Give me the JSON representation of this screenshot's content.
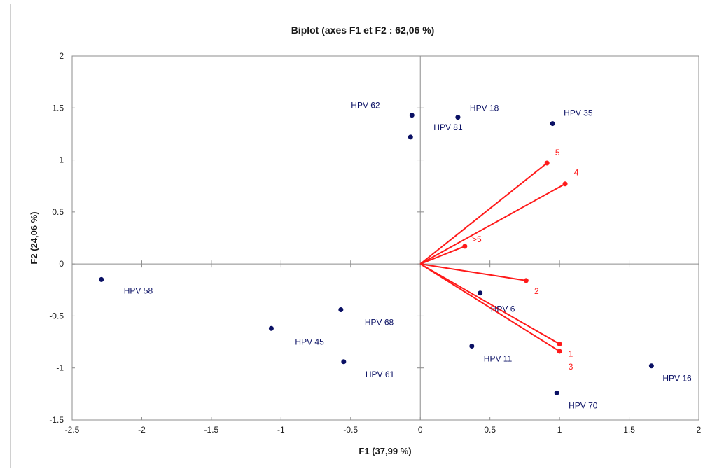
{
  "chart_data": {
    "type": "scatter",
    "title": "Biplot (axes F1 et F2 : 62,06 %)",
    "xlabel": "F1 (37,99 %)",
    "ylabel": "F2 (24,06 %)",
    "xlim": [
      -2.5,
      2
    ],
    "ylim": [
      -1.5,
      2
    ],
    "x_ticks": [
      "-2.5",
      "-2",
      "-1.5",
      "-1",
      "-0.5",
      "0",
      "0.5",
      "1",
      "1.5",
      "2"
    ],
    "y_ticks": [
      "-1.5",
      "-1",
      "-0.5",
      "0",
      "0.5",
      "1",
      "1.5",
      "2"
    ],
    "grid": false,
    "legend": "none",
    "point_color": "#0a1064",
    "vector_color": "#ff1a1a",
    "points": [
      {
        "label": "HPV 58",
        "x": -2.29,
        "y": -0.15
      },
      {
        "label": "HPV 45",
        "x": -1.07,
        "y": -0.62
      },
      {
        "label": "HPV 68",
        "x": -0.57,
        "y": -0.44
      },
      {
        "label": "HPV 61",
        "x": -0.55,
        "y": -0.94
      },
      {
        "label": "HPV 62",
        "x": -0.06,
        "y": 1.43
      },
      {
        "label": "HPV 81",
        "x": -0.07,
        "y": 1.22
      },
      {
        "label": "HPV 18",
        "x": 0.27,
        "y": 1.41
      },
      {
        "label": "HPV 35",
        "x": 0.95,
        "y": 1.35
      },
      {
        "label": "HPV 6",
        "x": 0.43,
        "y": -0.28
      },
      {
        "label": "HPV 11",
        "x": 0.37,
        "y": -0.79
      },
      {
        "label": "HPV 70",
        "x": 0.98,
        "y": -1.24
      },
      {
        "label": "HPV 16",
        "x": 1.66,
        "y": -0.98
      }
    ],
    "vectors": [
      {
        "label": "5",
        "x": 0.91,
        "y": 0.97
      },
      {
        "label": "4",
        "x": 1.04,
        "y": 0.77
      },
      {
        "label": ">5",
        "x": 0.32,
        "y": 0.17
      },
      {
        "label": "2",
        "x": 0.76,
        "y": -0.16
      },
      {
        "label": "1",
        "x": 1.0,
        "y": -0.77
      },
      {
        "label": "3",
        "x": 1.0,
        "y": -0.84
      }
    ]
  }
}
